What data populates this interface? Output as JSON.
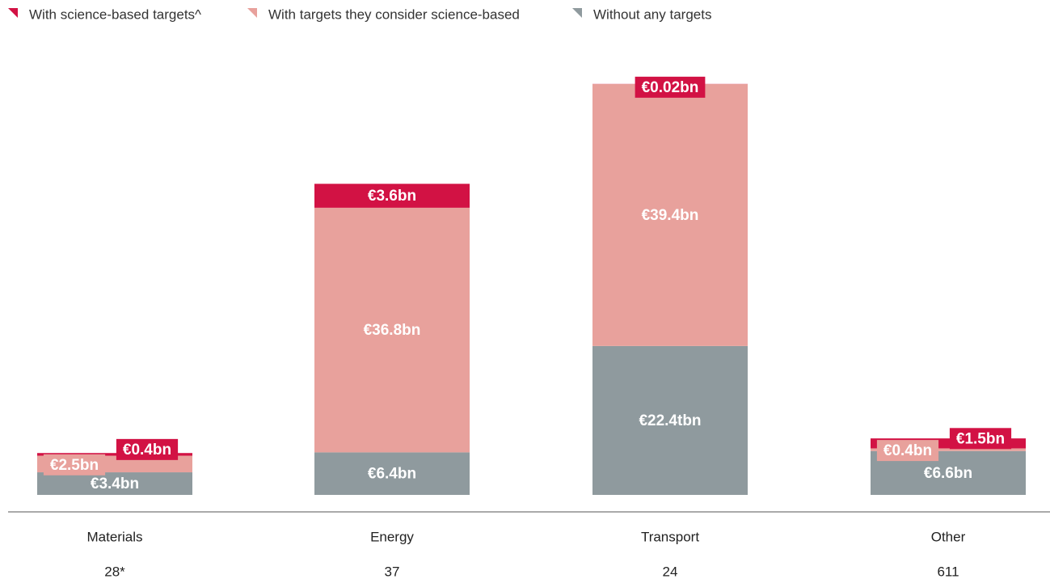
{
  "chart_data": {
    "type": "stacked_bar",
    "categories": [
      "Materials",
      "Energy",
      "Transport",
      "Other"
    ],
    "counts": [
      "28*",
      "37",
      "24",
      "611"
    ],
    "series": [
      {
        "name": "With science-based targets^",
        "color": "#d21244",
        "values": [
          0.4,
          3.6,
          0.02,
          1.5
        ],
        "value_labels": [
          "€0.4bn",
          "€3.6bn",
          "€0.02bn",
          "€1.5bn"
        ]
      },
      {
        "name": "With targets they consider science-based",
        "color": "#e8a19c",
        "values": [
          2.5,
          36.8,
          39.4,
          0.4
        ],
        "value_labels": [
          "€2.5bn",
          "€36.8bn",
          "€39.4bn",
          "€0.4bn"
        ]
      },
      {
        "name": "Without any targets",
        "color": "#8f9a9e",
        "values": [
          3.4,
          6.4,
          22.4,
          6.6
        ],
        "value_labels": [
          "€3.4bn",
          "€6.4bn",
          "€22.4tbn",
          "€6.6bn"
        ]
      }
    ],
    "ylim": [
      0,
      62
    ]
  }
}
